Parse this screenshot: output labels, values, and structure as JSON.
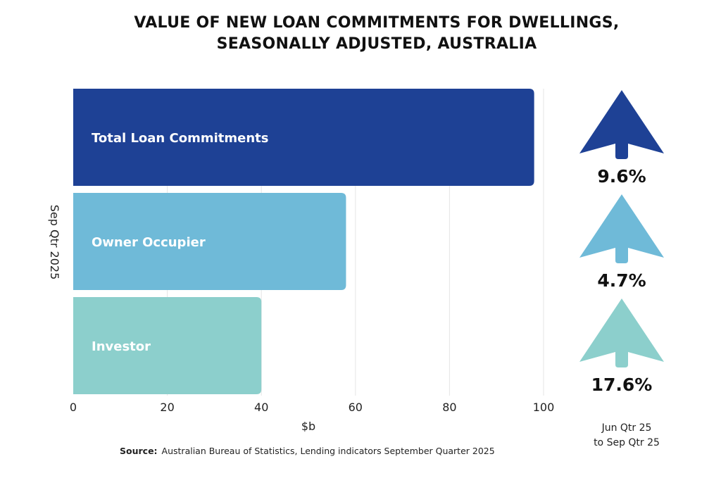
{
  "title": {
    "line1": "VALUE OF NEW LOAN COMMITMENTS FOR DWELLINGS,",
    "line2": "SEASONALLY ADJUSTED, AUSTRALIA"
  },
  "source": {
    "label": "Source:",
    "text": "Australian Bureau of Statistics, Lending indicators September Quarter 2025"
  },
  "period_note": {
    "line1": "Jun Qtr 25",
    "line2": "to Sep Qtr 25"
  },
  "colors": {
    "total": "#1e4195",
    "owner": "#6fbad8",
    "investor": "#8ccfcc",
    "grid": "#e5e5e5"
  },
  "chart_data": {
    "type": "bar",
    "orientation": "horizontal",
    "title": "VALUE OF NEW LOAN COMMITMENTS FOR DWELLINGS, SEASONALLY ADJUSTED, AUSTRALIA",
    "ylabel": "Sep Qtr 2025",
    "xlabel": "$b",
    "xlim": [
      0,
      100
    ],
    "xticks": [
      0,
      20,
      40,
      60,
      80,
      100
    ],
    "grid": true,
    "categories": [
      "Total Loan Commitments",
      "Owner Occupier",
      "Investor"
    ],
    "values": [
      98,
      58,
      40
    ],
    "changes": [
      "9.6%",
      "4.7%",
      "17.6%"
    ],
    "change_direction": [
      "up",
      "up",
      "up"
    ]
  }
}
